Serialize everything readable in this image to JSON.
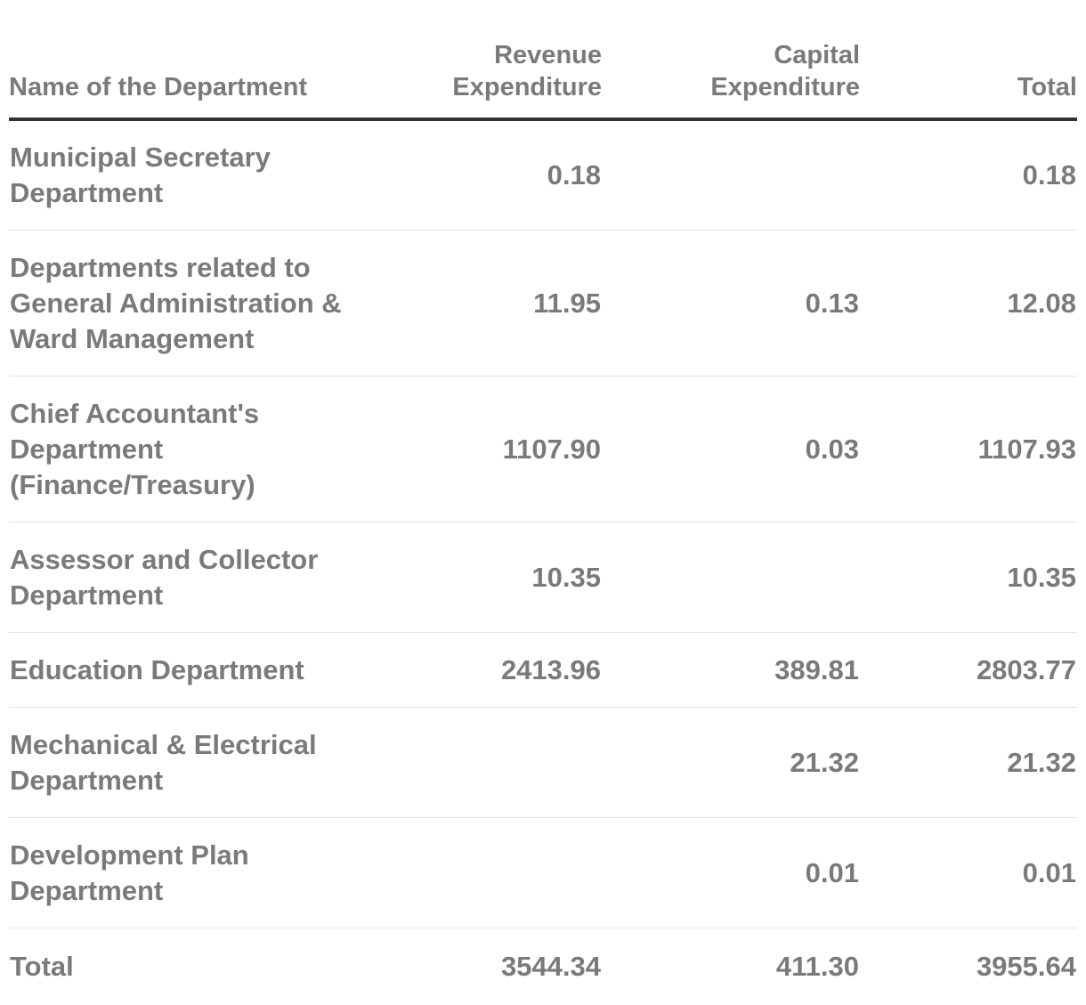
{
  "chart_data": {
    "type": "table",
    "columns": [
      "Name of the Department",
      "Revenue Expenditure",
      "Capital Expenditure",
      "Total"
    ],
    "rows": [
      {
        "name": "Municipal Secretary Department",
        "revenue": "0.18",
        "capital": "",
        "total": "0.18"
      },
      {
        "name": "Departments related to General Administration & Ward Management",
        "revenue": "11.95",
        "capital": "0.13",
        "total": "12.08"
      },
      {
        "name": "Chief Accountant's Department (Finance/Treasury)",
        "revenue": "1107.90",
        "capital": "0.03",
        "total": "1107.93"
      },
      {
        "name": "Assessor and Collector Department",
        "revenue": "10.35",
        "capital": "",
        "total": "10.35"
      },
      {
        "name": "Education Department",
        "revenue": "2413.96",
        "capital": "389.81",
        "total": "2803.77"
      },
      {
        "name": "Mechanical & Electrical Department",
        "revenue": "",
        "capital": "21.32",
        "total": "21.32"
      },
      {
        "name": "Development Plan Department",
        "revenue": "",
        "capital": "0.01",
        "total": "0.01"
      },
      {
        "name": "Total",
        "revenue": "3544.34",
        "capital": "411.30",
        "total": "3955.64"
      }
    ]
  },
  "header": {
    "name": "Name of the Department",
    "revenue_line1": "Revenue",
    "revenue_line2": "Expenditure",
    "capital_line1": "Capital",
    "capital_line2": "Expenditure",
    "total": "Total"
  }
}
